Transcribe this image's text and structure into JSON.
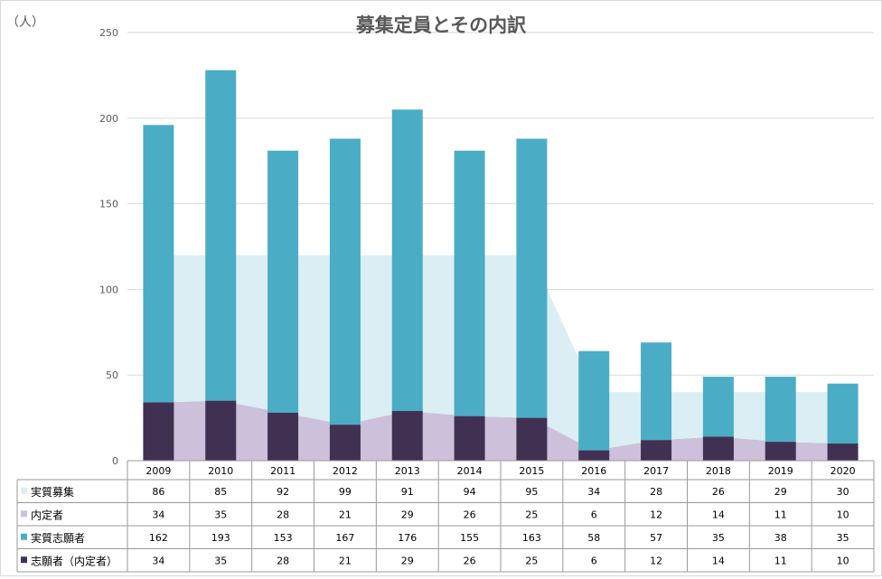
{
  "chart_data": {
    "type": "bar",
    "title": "募集定員とその内訳",
    "unit_label": "（人）",
    "ylim": [
      0,
      250
    ],
    "yticks": [
      0,
      50,
      100,
      150,
      200,
      250
    ],
    "categories": [
      "2009",
      "2010",
      "2011",
      "2012",
      "2013",
      "2014",
      "2015",
      "2016",
      "2017",
      "2018",
      "2019",
      "2020"
    ],
    "series": [
      {
        "name": "実質募集",
        "role": "area-stacked-top",
        "color": "#dbeef4",
        "values": [
          86,
          85,
          92,
          99,
          91,
          94,
          95,
          34,
          28,
          26,
          29,
          30
        ]
      },
      {
        "name": "内定者",
        "role": "area-stacked-bottom",
        "color": "#ccc0da",
        "values": [
          34,
          35,
          28,
          21,
          29,
          26,
          25,
          6,
          12,
          14,
          11,
          10
        ]
      },
      {
        "name": "実質志願者",
        "role": "bar-stacked-top",
        "color": "#4bacc6",
        "values": [
          162,
          193,
          153,
          167,
          176,
          155,
          163,
          58,
          57,
          35,
          38,
          35
        ]
      },
      {
        "name": "志願者（内定者）",
        "role": "bar-stacked-bottom",
        "color": "#403152",
        "values": [
          34,
          35,
          28,
          21,
          29,
          26,
          25,
          6,
          12,
          14,
          11,
          10
        ]
      }
    ],
    "grid": true,
    "legend": "data-table-left"
  }
}
